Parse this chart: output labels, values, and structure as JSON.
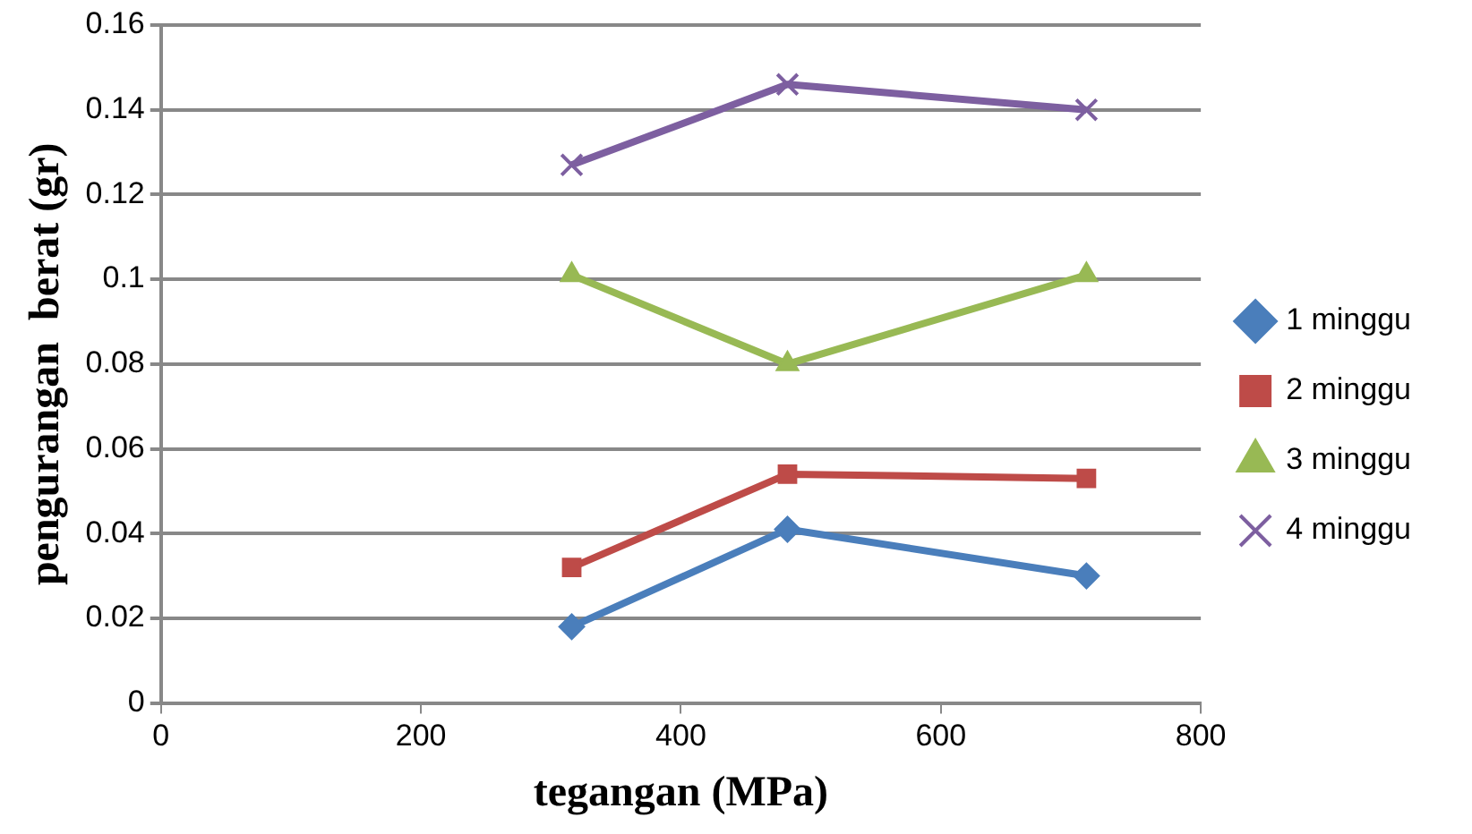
{
  "chart_data": {
    "type": "line",
    "xlabel": "tegangan (MPa)",
    "ylabel": "pengurangan  berat (gr)",
    "xlim": [
      0,
      800
    ],
    "xticks": [
      0,
      200,
      400,
      600,
      800
    ],
    "ylim": [
      0,
      0.16
    ],
    "yticks": [
      0,
      0.02,
      0.04,
      0.06,
      0.08,
      0.1,
      0.12,
      0.14,
      0.16
    ],
    "grid": "y",
    "legend": "right",
    "series": [
      {
        "name": "1 minggu",
        "color": "#4a7ebb",
        "marker": "diamond",
        "x": [
          316,
          482,
          712
        ],
        "values": [
          0.018,
          0.041,
          0.03
        ]
      },
      {
        "name": "2 minggu",
        "color": "#be4b48",
        "marker": "square",
        "x": [
          316,
          482,
          712
        ],
        "values": [
          0.032,
          0.054,
          0.053
        ]
      },
      {
        "name": "3 minggu",
        "color": "#98b954",
        "marker": "triangle",
        "x": [
          316,
          482,
          712
        ],
        "values": [
          0.101,
          0.08,
          0.101
        ]
      },
      {
        "name": "4 minggu",
        "color": "#7d5fa0",
        "marker": "cross",
        "x": [
          316,
          482,
          712
        ],
        "values": [
          0.127,
          0.146,
          0.14
        ]
      }
    ]
  }
}
